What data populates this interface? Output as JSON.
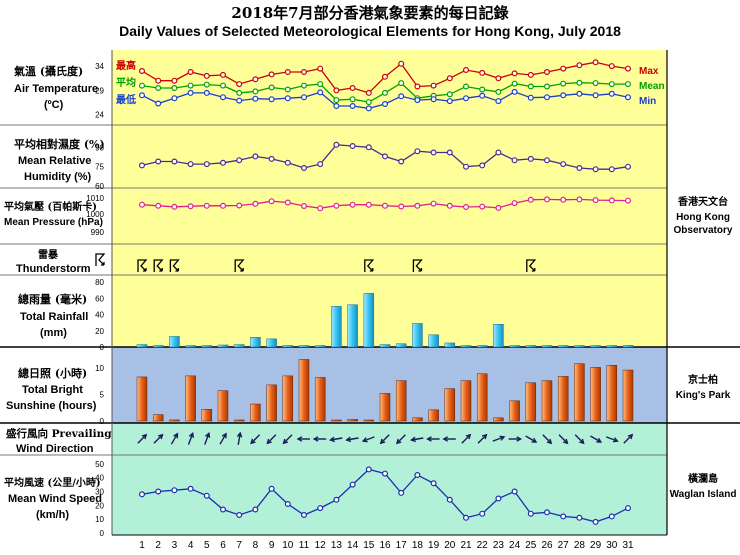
{
  "title_zh": "2018年7月部分香港氣象要素的每日記錄",
  "title_en": "Daily Values of Selected Meteorological Elements for Hong Kong, July 2018",
  "panels": {
    "temperature": {
      "label_zh": "氣溫 (攝氏度)",
      "label_en1": "Air Temperature",
      "label_en2": "(ºC)",
      "ticks": [
        "34",
        "29",
        "24"
      ],
      "ylim": [
        22.5,
        36.5
      ]
    },
    "humidity": {
      "label_zh": "平均相對濕度 (%)",
      "label_en1": "Mean Relative",
      "label_en2": "Humidity (%)",
      "ticks": [
        "90",
        "75",
        "60"
      ],
      "ylim": [
        60,
        105
      ]
    },
    "pressure": {
      "label_zh": "平均氣壓 (百帕斯卡)",
      "label_en1": "Mean Pressure (hPa)",
      "ticks": [
        "1010",
        "1000",
        "990"
      ],
      "ylim": [
        980,
        1015
      ]
    },
    "thunderstorm": {
      "label_zh": "雷暴",
      "label_en1": "Thunderstorm"
    },
    "rainfall": {
      "label_zh": "總雨量 (毫米)",
      "label_en1": "Total Rainfall",
      "label_en2": "(mm)",
      "ticks": [
        "80",
        "60",
        "40",
        "20",
        "0"
      ],
      "ylim": [
        0,
        80
      ]
    },
    "sunshine": {
      "label_zh": "總日照 (小時)",
      "label_en1": "Total Bright",
      "label_en2": "Sunshine  (hours)",
      "ticks": [
        "10",
        "5",
        "0"
      ],
      "ylim": [
        0,
        13
      ]
    },
    "wind_direction": {
      "label_zh": "盛行風向 Prevailing",
      "label_en1": "Wind Direction"
    },
    "wind_speed": {
      "label_zh": "平均風速 (公里/小時)",
      "label_en1": "Mean Wind Speed",
      "label_en2": "(km/h)",
      "ticks": [
        "50",
        "40",
        "30",
        "20",
        "10",
        "0"
      ],
      "ylim": [
        0,
        55
      ]
    }
  },
  "legend": {
    "max": {
      "zh": "最高",
      "en": "Max",
      "color": "#cc0000"
    },
    "mean": {
      "zh": "平均",
      "en": "Mean",
      "color": "#00a000"
    },
    "min": {
      "zh": "最低",
      "en": "Min",
      "color": "#1a3fcc"
    }
  },
  "stations": {
    "hko": {
      "zh": "香港天文台",
      "en1": "Hong Kong",
      "en2": "Observatory"
    },
    "kp": {
      "zh": "京士柏",
      "en1": "King's Park"
    },
    "wi": {
      "zh": "橫瀾島",
      "en1": "Waglan Island"
    }
  },
  "colors": {
    "yellow_bg": "#ffff99",
    "blue_bg": "#a9c0e6",
    "green_bg": "#b3f0d8",
    "humidity_line": "#4b2c8c",
    "pressure_line": "#e0208c",
    "rain_bar": "#33c4f2",
    "sun_bar": "#e8601a",
    "wind_line": "#1a2fb0",
    "arrow": "#1a1a5a"
  },
  "chart_data": {
    "type": "line",
    "x_label": "day",
    "days": [
      "1",
      "2",
      "3",
      "4",
      "5",
      "6",
      "7",
      "8",
      "9",
      "10",
      "11",
      "12",
      "13",
      "14",
      "15",
      "16",
      "17",
      "18",
      "19",
      "20",
      "21",
      "22",
      "23",
      "24",
      "25",
      "26",
      "27",
      "28",
      "29",
      "30",
      "31"
    ],
    "series": [
      {
        "name": "Max",
        "panel": "temperature",
        "values": [
          33.0,
          31.0,
          31.0,
          32.8,
          32.0,
          32.2,
          30.3,
          31.3,
          32.3,
          32.8,
          32.8,
          33.5,
          29.0,
          29.5,
          28.5,
          31.8,
          34.5,
          29.8,
          30.0,
          31.5,
          33.2,
          32.6,
          31.5,
          32.5,
          32.2,
          32.8,
          33.5,
          34.2,
          34.8,
          34.0,
          33.5
        ]
      },
      {
        "name": "Mean",
        "panel": "temperature",
        "values": [
          30.0,
          29.5,
          29.5,
          30.0,
          30.2,
          30.0,
          28.5,
          28.8,
          29.6,
          29.2,
          30.0,
          30.3,
          27.0,
          27.2,
          26.6,
          28.5,
          30.5,
          27.4,
          27.9,
          28.2,
          29.8,
          29.2,
          28.7,
          30.4,
          29.8,
          29.8,
          30.4,
          30.6,
          30.5,
          30.3,
          30.3
        ]
      },
      {
        "name": "Min",
        "panel": "temperature",
        "values": [
          28.0,
          26.3,
          27.4,
          28.5,
          28.5,
          27.6,
          26.9,
          27.3,
          27.2,
          27.4,
          27.6,
          28.6,
          25.8,
          25.8,
          25.3,
          26.2,
          27.8,
          27.0,
          27.2,
          26.8,
          27.4,
          27.9,
          26.8,
          28.7,
          27.5,
          27.6,
          28.0,
          28.3,
          28.0,
          28.3,
          27.6
        ]
      },
      {
        "name": "Mean Relative Humidity",
        "panel": "humidity",
        "values": [
          76,
          79,
          79,
          77,
          77,
          78,
          80,
          83,
          81,
          78,
          74,
          77,
          92,
          91,
          90,
          83,
          79,
          87,
          86,
          86,
          75,
          76,
          86,
          80,
          81,
          80,
          77,
          74,
          73,
          73,
          75
        ]
      },
      {
        "name": "Mean Pressure",
        "panel": "pressure",
        "values": [
          1005.8,
          1005.1,
          1004.5,
          1004.8,
          1005.2,
          1005.1,
          1005.3,
          1006.4,
          1008.0,
          1007.2,
          1005.0,
          1003.6,
          1005.2,
          1005.8,
          1005.8,
          1005.2,
          1004.7,
          1005.1,
          1006.5,
          1005.1,
          1004.4,
          1004.6,
          1003.8,
          1006.8,
          1008.9,
          1009.1,
          1008.9,
          1009.1,
          1008.7,
          1008.5,
          1008.4
        ]
      },
      {
        "name": "Thunderstorm",
        "panel": "thunderstorm",
        "days_observed": [
          1,
          2,
          3,
          7,
          15,
          18,
          25
        ]
      },
      {
        "name": "Total Rainfall",
        "panel": "rainfall",
        "values": [
          3,
          0,
          13,
          1.5,
          0,
          2.5,
          3,
          12,
          10,
          0,
          0,
          0,
          50,
          52,
          66,
          3,
          4,
          29,
          15,
          5,
          0,
          0,
          28,
          0.5,
          0,
          1,
          0,
          0,
          0,
          0,
          2
        ]
      },
      {
        "name": "Total Bright Sunshine",
        "panel": "sunshine",
        "values": [
          8.3,
          1.2,
          0.2,
          8.5,
          2.2,
          5.7,
          0,
          3.2,
          6.8,
          8.5,
          11.6,
          8.2,
          0,
          0.3,
          0,
          5.2,
          7.6,
          0.6,
          2.1,
          6.1,
          7.6,
          8.9,
          0.6,
          3.8,
          7.2,
          7.6,
          8.4,
          10.8,
          10.1,
          10.5,
          9.6
        ]
      },
      {
        "name": "Prevailing Wind Direction",
        "panel": "wind_direction",
        "unit": "degrees (direction wind blows from)",
        "values": [
          225,
          225,
          210,
          200,
          200,
          210,
          190,
          45,
          45,
          45,
          90,
          90,
          80,
          80,
          70,
          45,
          45,
          80,
          90,
          90,
          225,
          225,
          250,
          270,
          300,
          315,
          315,
          315,
          300,
          290,
          225
        ]
      },
      {
        "name": "Mean Wind Speed",
        "panel": "wind_speed",
        "values": [
          28,
          30,
          31,
          32,
          27,
          17,
          13,
          17,
          32,
          21,
          13,
          18,
          24,
          35,
          46,
          43,
          29,
          42,
          36,
          24,
          11,
          14,
          25,
          30,
          14,
          15,
          12,
          11,
          8,
          12,
          18
        ]
      }
    ]
  }
}
